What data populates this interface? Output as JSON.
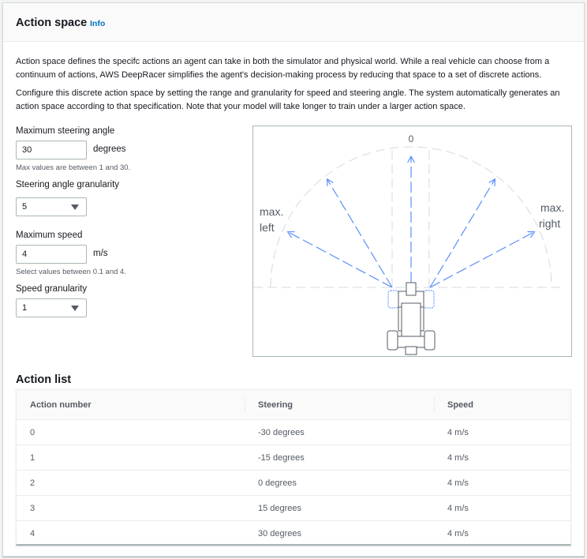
{
  "header": {
    "title": "Action space",
    "info_link": "Info"
  },
  "description": [
    "Action space defines the specifc actions an agent can take in both the simulator and physical world. While a real vehicle can choose from a continuum of actions, AWS DeepRacer simplifies the agent's decision-making process by reducing that space to a set of discrete actions.",
    "Configure this discrete action space by setting the range and granularity for speed and steering angle. The system automatically generates an action space according to that specification. Note that your model will take longer to train under a larger action space."
  ],
  "form": {
    "max_steering": {
      "label": "Maximum steering angle",
      "value": "30",
      "unit": "degrees",
      "hint": "Max values are between 1 and 30."
    },
    "steering_granularity": {
      "label": "Steering angle granularity",
      "value": "5"
    },
    "max_speed": {
      "label": "Maximum speed",
      "value": "4",
      "unit": "m/s",
      "hint": "Select values between 0.1 and 4."
    },
    "speed_granularity": {
      "label": "Speed granularity",
      "value": "1"
    }
  },
  "diagram": {
    "zero_label": "0",
    "left_label": [
      "max.",
      "left"
    ],
    "right_label": [
      "max.",
      "right"
    ],
    "arrow_color": "#5b8ff9",
    "steering_angles": [
      -30,
      -15,
      0,
      15,
      30
    ]
  },
  "action_list": {
    "title": "Action list",
    "columns": [
      "Action number",
      "Steering",
      "Speed"
    ],
    "rows": [
      [
        "0",
        "-30 degrees",
        "4 m/s"
      ],
      [
        "1",
        "-15 degrees",
        "4 m/s"
      ],
      [
        "2",
        "0 degrees",
        "4 m/s"
      ],
      [
        "3",
        "15 degrees",
        "4 m/s"
      ],
      [
        "4",
        "30 degrees",
        "4 m/s"
      ]
    ]
  }
}
